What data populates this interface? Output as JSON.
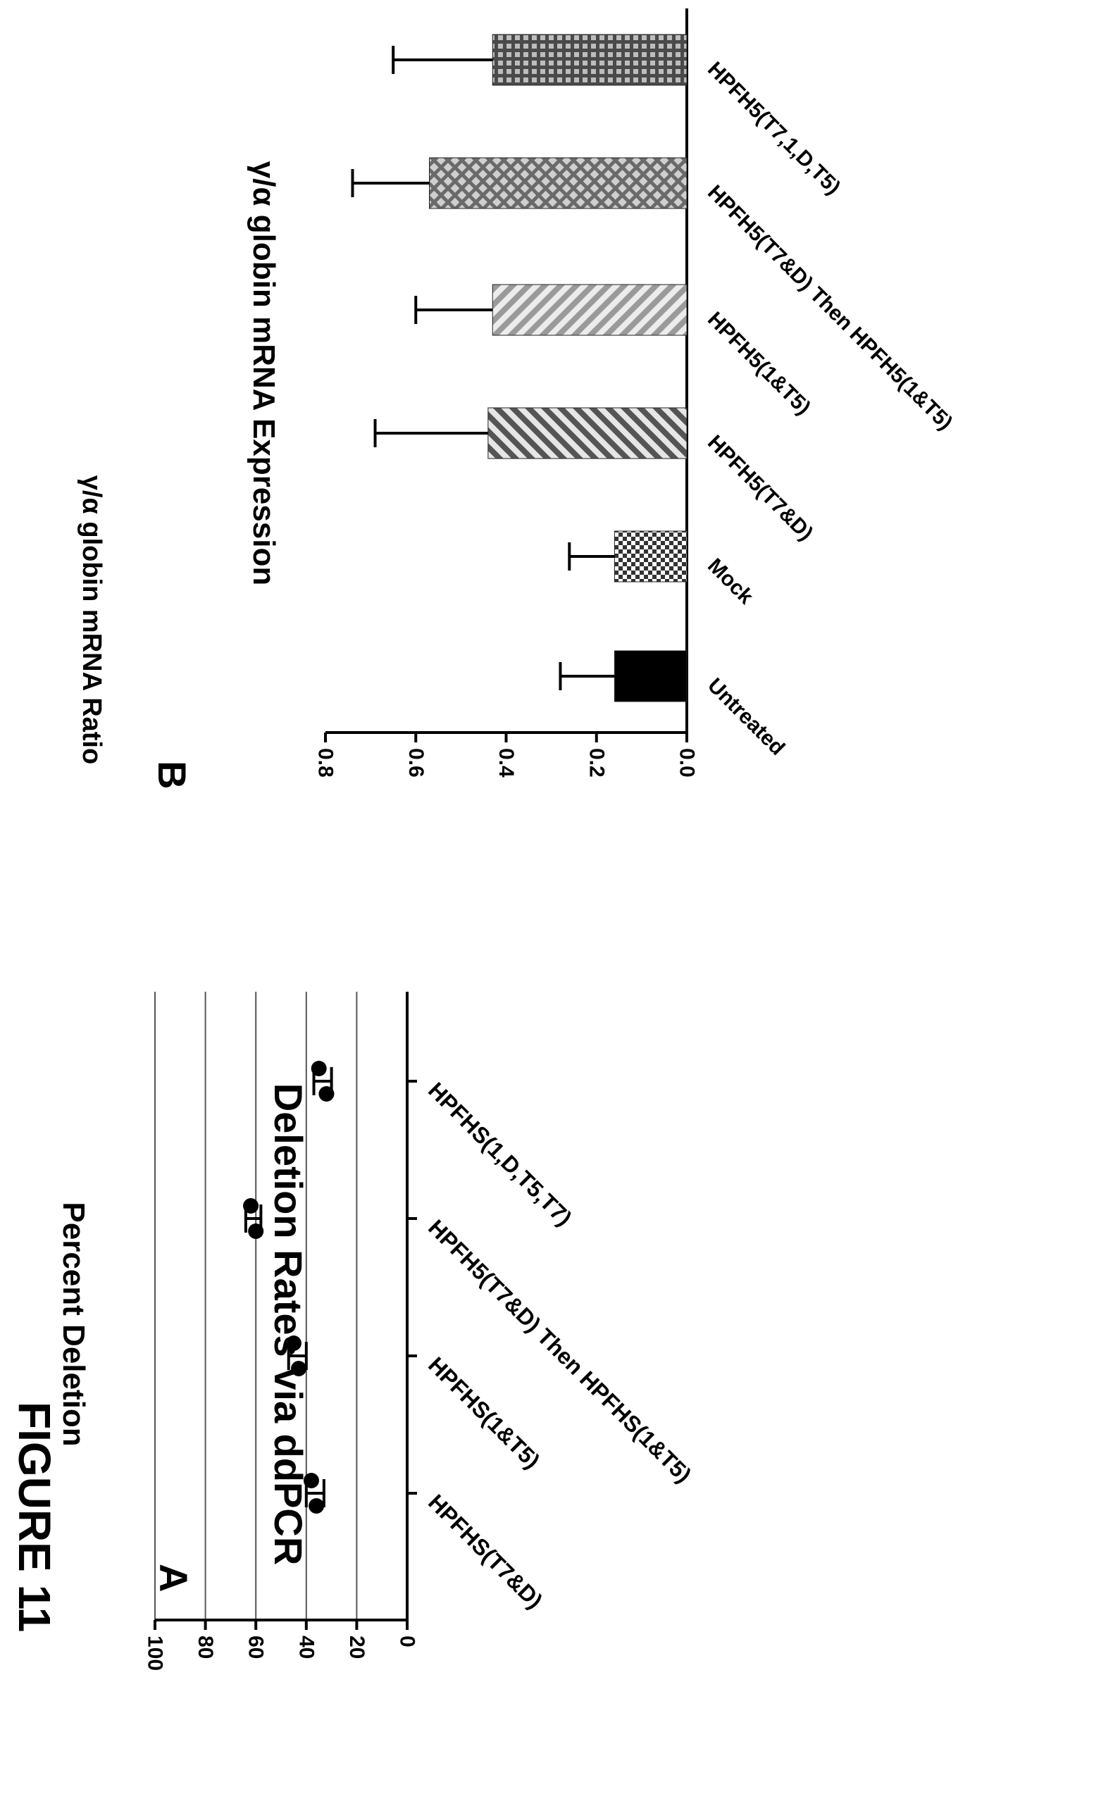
{
  "figure_title": "FIGURE 11",
  "panels": {
    "a": {
      "label": "A",
      "title": "Deletion Rates via ddPCR",
      "ylabel": "Percent Deletion"
    },
    "b": {
      "label": "B",
      "title": "γ/α globin mRNA Expression",
      "ylabel": "γ/α globin mRNA  Ratio"
    }
  },
  "colors": {
    "ink": "#000000",
    "grid": "#555555",
    "bar_untreated": "#000000",
    "bar_mock": "#333333",
    "bar_diag_dark": "#555555",
    "bar_diag_light": "#9a9a9a",
    "bar_crosshatch": "#6a6a6a",
    "bar_grid": "#4a4a4a"
  },
  "chart_data": [
    {
      "type": "scatter",
      "title": "Deletion Rates via ddPCR",
      "ylabel": "Percent Deletion",
      "xlabel": "",
      "ylim": [
        0,
        100
      ],
      "yticks": [
        0,
        20,
        40,
        60,
        80,
        100
      ],
      "grid": true,
      "categories": [
        "HPFHS(T7&D)",
        "HPFHS(1&T5)",
        "HPFH5(T7&D) Then HPFHS(1&T5)",
        "HPFHS(1,D,T5,T7)"
      ],
      "points": [
        [
          36,
          38
        ],
        [
          43,
          45
        ],
        [
          60,
          62
        ],
        [
          32,
          35
        ]
      ],
      "mean": [
        37,
        44,
        61,
        33.5
      ],
      "error_range": [
        [
          33,
          40
        ],
        [
          40,
          47
        ],
        [
          58,
          64
        ],
        [
          30,
          37
        ]
      ],
      "tick_labels": [
        "0",
        "20",
        "40",
        "60",
        "80",
        "100"
      ]
    },
    {
      "type": "bar",
      "title": "γ/α globin mRNA Expression",
      "ylabel": "γ/α globin mRNA  Ratio",
      "xlabel": "",
      "ylim": [
        0,
        0.8
      ],
      "yticks": [
        0,
        0.2,
        0.4,
        0.6,
        0.8
      ],
      "grid": false,
      "categories": [
        "Untreated",
        "Mock",
        "HPFH5(T7&D)",
        "HPFH5(1&T5)",
        "HPFH5(T7&D) Then HPFH5(1&T5)",
        "HPFH5(T7,1,D,T5)"
      ],
      "values": [
        0.16,
        0.16,
        0.44,
        0.43,
        0.57,
        0.43
      ],
      "errors": [
        0.12,
        0.1,
        0.25,
        0.17,
        0.17,
        0.22
      ],
      "patterns": [
        "solid",
        "checker",
        "diag-dark",
        "diag-light",
        "crosshatch",
        "grid"
      ],
      "tick_labels": [
        "0.0",
        "0.2",
        "0.4",
        "0.6",
        "0.8"
      ]
    }
  ]
}
